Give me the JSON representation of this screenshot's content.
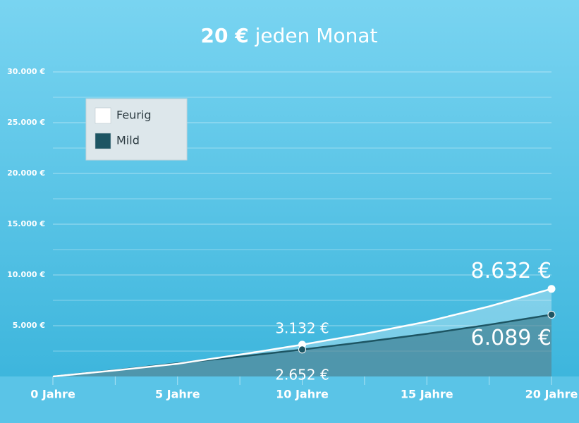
{
  "chart_data": {
    "type": "area",
    "title": {
      "amount": "20 €",
      "text": "jeden Monat"
    },
    "x": [
      0,
      2.5,
      5,
      7.5,
      10,
      12.5,
      15,
      17.5,
      20
    ],
    "series": [
      {
        "name": "Feurig",
        "color": "#ffffff",
        "values": [
          0,
          600,
          1250,
          2150,
          3132,
          4200,
          5400,
          6900,
          8632
        ],
        "value_labels": [
          null,
          null,
          null,
          null,
          "3.132 €",
          null,
          null,
          null,
          "8.632 €"
        ]
      },
      {
        "name": "Mild",
        "color": "#1d5563",
        "values": [
          0,
          620,
          1300,
          1950,
          2652,
          3400,
          4200,
          5100,
          6089
        ],
        "value_labels": [
          null,
          null,
          null,
          null,
          "2.652 €",
          null,
          null,
          null,
          "6.089 €"
        ]
      }
    ],
    "xlim": [
      0,
      20
    ],
    "xticks": [
      {
        "value": 0,
        "label": "0 Jahre"
      },
      {
        "value": 5,
        "label": "5 Jahre"
      },
      {
        "value": 10,
        "label": "10 Jahre"
      },
      {
        "value": 15,
        "label": "15 Jahre"
      },
      {
        "value": 20,
        "label": "20 Jahre"
      }
    ],
    "minor_xticks": [
      2.5,
      7.5,
      12.5,
      17.5
    ],
    "ylim": [
      0,
      30000
    ],
    "yticks": [
      {
        "value": 5000,
        "label": "5.000 €"
      },
      {
        "value": 10000,
        "label": "10.000 €"
      },
      {
        "value": 15000,
        "label": "15.000 €"
      },
      {
        "value": 20000,
        "label": "20.000 €"
      },
      {
        "value": 25000,
        "label": "25.000 €"
      },
      {
        "value": 30000,
        "label": "30.000 €"
      }
    ],
    "minor_yticks": [
      2500,
      7500,
      12500,
      17500,
      22500,
      27500
    ],
    "grid": true,
    "legend": "upper left"
  }
}
